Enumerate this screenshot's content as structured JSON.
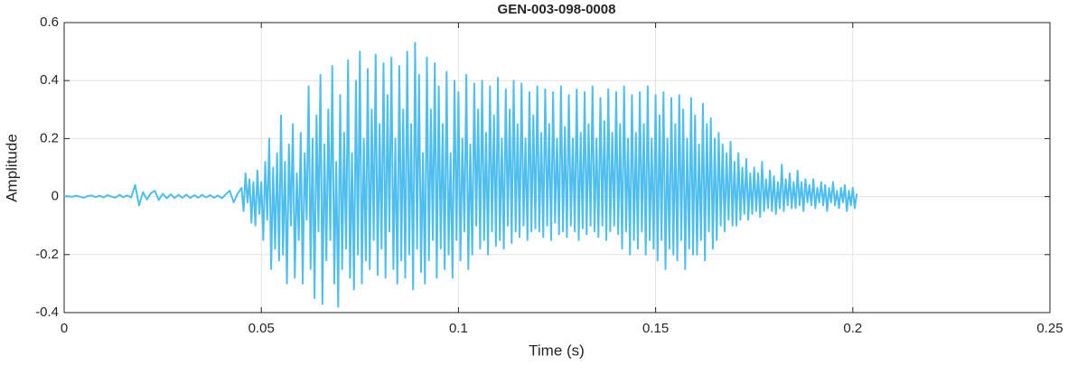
{
  "chart_data": {
    "type": "line",
    "title": "GEN-003-098-0008",
    "x_label": "Time (s)",
    "y_label": "Amplitude",
    "x": [
      0,
      0.001,
      0.002,
      0.003,
      0.004,
      0.005,
      0.006,
      0.007,
      0.008,
      0.009,
      0.01,
      0.011,
      0.012,
      0.013,
      0.014,
      0.015,
      0.016,
      0.017,
      0.018,
      0.019,
      0.02,
      0.021,
      0.022,
      0.023,
      0.024,
      0.025,
      0.026,
      0.027,
      0.028,
      0.029,
      0.03,
      0.031,
      0.032,
      0.033,
      0.034,
      0.035,
      0.036,
      0.037,
      0.038,
      0.039,
      0.04,
      0.041,
      0.042,
      0.043,
      0.044,
      0.045,
      0.0455,
      0.046,
      0.0465,
      0.047,
      0.0475,
      0.048,
      0.0485,
      0.049,
      0.0495,
      0.05,
      0.0505,
      0.051,
      0.0515,
      0.052,
      0.0525,
      0.053,
      0.0535,
      0.054,
      0.0545,
      0.055,
      0.0555,
      0.056,
      0.0565,
      0.057,
      0.0575,
      0.058,
      0.0585,
      0.059,
      0.0595,
      0.06,
      0.0605,
      0.061,
      0.0615,
      0.062,
      0.0625,
      0.063,
      0.0635,
      0.064,
      0.0645,
      0.065,
      0.0655,
      0.066,
      0.0665,
      0.067,
      0.0675,
      0.068,
      0.0685,
      0.069,
      0.0695,
      0.07,
      0.0705,
      0.071,
      0.0715,
      0.072,
      0.0725,
      0.073,
      0.0735,
      0.074,
      0.0745,
      0.075,
      0.0755,
      0.076,
      0.0765,
      0.077,
      0.0775,
      0.078,
      0.0785,
      0.079,
      0.0795,
      0.08,
      0.0805,
      0.081,
      0.0815,
      0.082,
      0.0825,
      0.083,
      0.0835,
      0.084,
      0.0845,
      0.085,
      0.0855,
      0.086,
      0.0865,
      0.087,
      0.0875,
      0.088,
      0.0885,
      0.089,
      0.0895,
      0.09,
      0.0905,
      0.091,
      0.0915,
      0.092,
      0.0925,
      0.093,
      0.0935,
      0.094,
      0.0945,
      0.095,
      0.0955,
      0.096,
      0.0965,
      0.097,
      0.0975,
      0.098,
      0.0985,
      0.099,
      0.0995,
      0.1,
      0.1005,
      0.101,
      0.1015,
      0.102,
      0.1025,
      0.103,
      0.1035,
      0.104,
      0.1045,
      0.105,
      0.1055,
      0.106,
      0.1065,
      0.107,
      0.1075,
      0.108,
      0.1085,
      0.109,
      0.1095,
      0.11,
      0.1105,
      0.111,
      0.1115,
      0.112,
      0.1125,
      0.113,
      0.1135,
      0.114,
      0.1145,
      0.115,
      0.1155,
      0.116,
      0.1165,
      0.117,
      0.1175,
      0.118,
      0.1185,
      0.119,
      0.1195,
      0.12,
      0.1205,
      0.121,
      0.1215,
      0.122,
      0.1225,
      0.123,
      0.1235,
      0.124,
      0.1245,
      0.125,
      0.1255,
      0.126,
      0.1265,
      0.127,
      0.1275,
      0.128,
      0.1285,
      0.129,
      0.1295,
      0.13,
      0.1305,
      0.131,
      0.1315,
      0.132,
      0.1325,
      0.133,
      0.1335,
      0.134,
      0.1345,
      0.135,
      0.1355,
      0.136,
      0.1365,
      0.137,
      0.1375,
      0.138,
      0.1385,
      0.139,
      0.1395,
      0.14,
      0.1405,
      0.141,
      0.1415,
      0.142,
      0.1425,
      0.143,
      0.1435,
      0.144,
      0.1445,
      0.145,
      0.1455,
      0.146,
      0.1465,
      0.147,
      0.1475,
      0.148,
      0.1485,
      0.149,
      0.1495,
      0.15,
      0.1505,
      0.151,
      0.1515,
      0.152,
      0.1525,
      0.153,
      0.1535,
      0.154,
      0.1545,
      0.155,
      0.1555,
      0.156,
      0.1565,
      0.157,
      0.1575,
      0.158,
      0.1585,
      0.159,
      0.1595,
      0.16,
      0.1605,
      0.161,
      0.1615,
      0.162,
      0.1625,
      0.163,
      0.1635,
      0.164,
      0.1645,
      0.165,
      0.1655,
      0.166,
      0.1665,
      0.167,
      0.1675,
      0.168,
      0.1685,
      0.169,
      0.1695,
      0.17,
      0.1705,
      0.171,
      0.1715,
      0.172,
      0.1725,
      0.173,
      0.1735,
      0.174,
      0.1745,
      0.175,
      0.1755,
      0.176,
      0.1765,
      0.177,
      0.1775,
      0.178,
      0.1785,
      0.179,
      0.1795,
      0.18,
      0.1805,
      0.181,
      0.1815,
      0.182,
      0.1825,
      0.183,
      0.1835,
      0.184,
      0.1845,
      0.185,
      0.1855,
      0.186,
      0.1865,
      0.187,
      0.1875,
      0.188,
      0.1885,
      0.189,
      0.1895,
      0.19,
      0.1905,
      0.191,
      0.1915,
      0.192,
      0.1925,
      0.193,
      0.1935,
      0.194,
      0.1945,
      0.195,
      0.1955,
      0.196,
      0.1965,
      0.197,
      0.1975,
      0.198,
      0.1985,
      0.199,
      0.1995,
      0.2,
      0.2005,
      0.201
    ],
    "values": [
      0,
      0.002,
      -0.001,
      0.003,
      0,
      -0.004,
      0.002,
      0.004,
      -0.002,
      0.003,
      -0.003,
      0.005,
      0,
      -0.004,
      0.006,
      -0.002,
      0.004,
      -0.003,
      0.04,
      -0.03,
      0.015,
      -0.01,
      0.012,
      0.02,
      -0.012,
      0.01,
      -0.006,
      0.008,
      -0.005,
      0.006,
      -0.004,
      0.007,
      -0.005,
      0.005,
      -0.004,
      0.006,
      -0.003,
      0.005,
      -0.004,
      0.004,
      -0.006,
      0.008,
      0.02,
      -0.02,
      0.01,
      0.03,
      -0.05,
      0.08,
      -0.02,
      0.06,
      -0.09,
      0.05,
      -0.1,
      0.09,
      -0.06,
      0.05,
      -0.15,
      0.12,
      -0.08,
      0.2,
      -0.25,
      0.1,
      -0.18,
      0.15,
      -0.22,
      0.28,
      -0.2,
      0.12,
      -0.3,
      0.18,
      -0.1,
      0.25,
      -0.28,
      0.08,
      -0.15,
      0.22,
      -0.3,
      0.15,
      -0.08,
      0.38,
      -0.25,
      0.2,
      -0.35,
      0.28,
      -0.12,
      0.42,
      -0.37,
      0.18,
      -0.22,
      0.3,
      -0.15,
      0.45,
      -0.3,
      0.12,
      -0.38,
      0.35,
      -0.25,
      0.22,
      -0.18,
      0.47,
      -0.28,
      0.15,
      -0.32,
      0.4,
      -0.2,
      0.5,
      -0.3,
      0.2,
      -0.22,
      0.44,
      -0.25,
      0.3,
      -0.15,
      0.49,
      -0.27,
      0.25,
      -0.18,
      0.46,
      -0.28,
      0.35,
      -0.12,
      0.48,
      -0.25,
      0.2,
      -0.3,
      0.45,
      -0.22,
      0.3,
      -0.28,
      0.5,
      -0.2,
      0.25,
      -0.32,
      0.53,
      -0.18,
      0.42,
      -0.26,
      0.15,
      -0.3,
      0.48,
      -0.22,
      0.3,
      -0.15,
      0.46,
      -0.28,
      0.38,
      -0.18,
      0.25,
      -0.25,
      0.43,
      -0.2,
      0.15,
      -0.28,
      0.4,
      -0.15,
      0.36,
      -0.22,
      0.2,
      -0.12,
      0.42,
      -0.25,
      0.18,
      -0.2,
      0.39,
      -0.1,
      0.3,
      -0.18,
      0.4,
      -0.15,
      0.22,
      -0.2,
      0.38,
      -0.12,
      0.28,
      -0.17,
      0.41,
      -0.15,
      0.2,
      -0.18,
      0.37,
      -0.1,
      0.3,
      -0.16,
      0.4,
      -0.12,
      0.25,
      -0.14,
      0.39,
      -0.1,
      0.2,
      -0.15,
      0.36,
      -0.12,
      0.28,
      -0.11,
      0.38,
      -0.12,
      0.22,
      -0.14,
      0.37,
      -0.1,
      0.25,
      -0.15,
      0.36,
      -0.09,
      0.2,
      -0.13,
      0.38,
      -0.12,
      0.24,
      -0.14,
      0.35,
      -0.1,
      0.2,
      -0.12,
      0.37,
      -0.15,
      0.22,
      -0.11,
      0.36,
      -0.13,
      0.25,
      -0.1,
      0.38,
      -0.12,
      0.2,
      -0.14,
      0.34,
      -0.1,
      0.26,
      -0.15,
      0.37,
      -0.12,
      0.22,
      -0.1,
      0.36,
      -0.13,
      0.25,
      -0.18,
      0.38,
      -0.12,
      0.2,
      -0.2,
      0.35,
      -0.15,
      0.22,
      -0.18,
      0.36,
      -0.12,
      0.25,
      -0.2,
      0.38,
      -0.15,
      0.2,
      -0.18,
      0.35,
      -0.22,
      0.28,
      -0.15,
      0.36,
      -0.25,
      0.2,
      -0.18,
      0.34,
      -0.2,
      0.25,
      -0.22,
      0.35,
      -0.15,
      0.3,
      -0.25,
      0.2,
      -0.18,
      0.34,
      -0.2,
      0.28,
      -0.2,
      0.18,
      -0.15,
      0.32,
      -0.22,
      0.25,
      -0.12,
      0.27,
      -0.18,
      0.2,
      -0.15,
      0.22,
      -0.1,
      0.18,
      -0.12,
      0.15,
      -0.08,
      0.19,
      -0.1,
      0.12,
      -0.1,
      0.15,
      -0.08,
      0.1,
      -0.06,
      0.13,
      -0.08,
      0.08,
      -0.06,
      0.1,
      -0.05,
      0.08,
      -0.07,
      0.12,
      -0.05,
      0.06,
      -0.04,
      0.09,
      -0.05,
      0.07,
      -0.06,
      0.05,
      -0.04,
      0.11,
      -0.05,
      0.06,
      -0.03,
      0.08,
      -0.04,
      0.05,
      -0.04,
      0.09,
      -0.03,
      0.05,
      -0.05,
      0.06,
      -0.02,
      0.04,
      -0.03,
      0.06,
      -0.04,
      0.03,
      -0.02,
      0.05,
      -0.03,
      0.04,
      -0.05,
      0.03,
      -0.02,
      0.05,
      -0.03,
      0.02,
      -0.04,
      0.03,
      -0.02,
      0.04,
      -0.05,
      0.02,
      -0.03,
      0.03,
      -0.04,
      0.01
    ],
    "color": "#4dbeee",
    "xlim": [
      0,
      0.25
    ],
    "xticks": [
      0,
      0.05,
      0.1,
      0.15,
      0.2,
      0.25
    ],
    "ylim": [
      -0.4,
      0.6
    ],
    "yticks": [
      -0.4,
      -0.2,
      0,
      0.2,
      0.4,
      0.6
    ],
    "grid": true
  }
}
